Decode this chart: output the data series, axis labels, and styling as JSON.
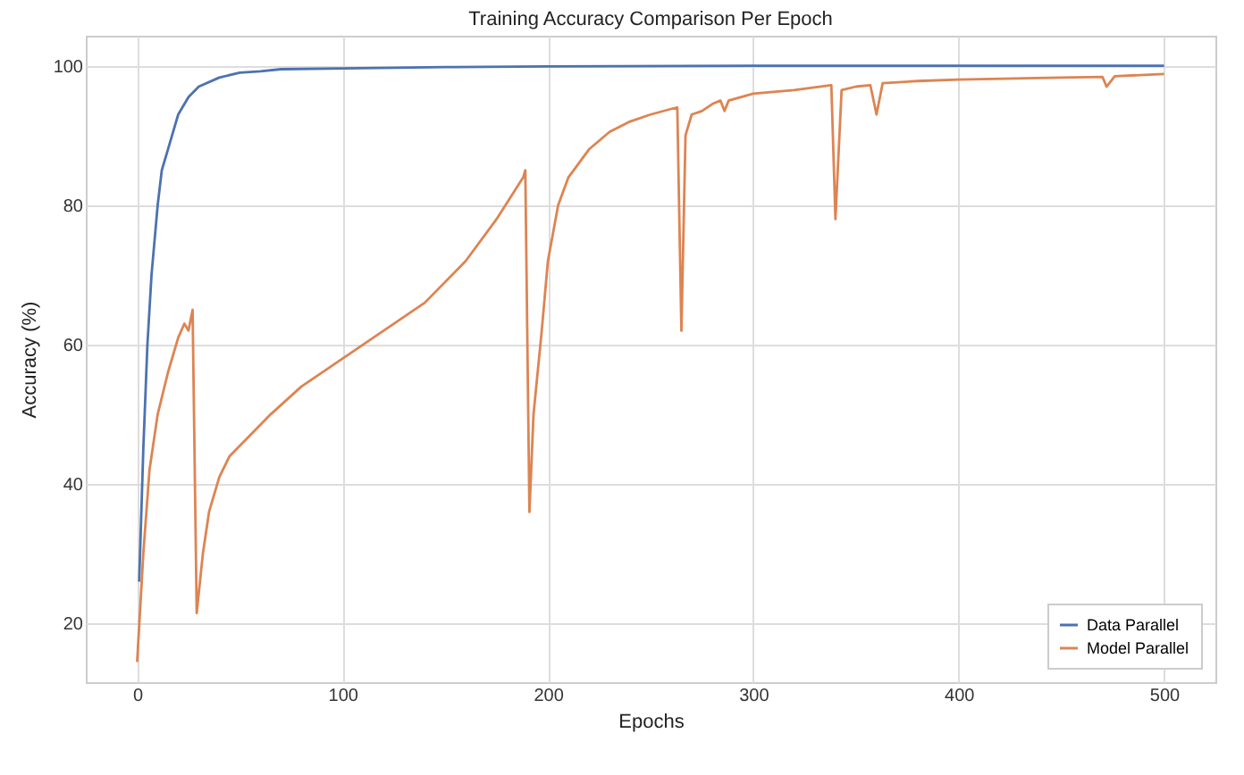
{
  "chart_data": {
    "type": "line",
    "title": "Training Accuracy Comparison Per Epoch",
    "xlabel": "Epochs",
    "ylabel": "Accuracy (%)",
    "xlim": [
      -25,
      525
    ],
    "xticks": [
      0,
      100,
      200,
      300,
      400,
      500
    ],
    "ylim": [
      11.6,
      104.3
    ],
    "yticks": [
      20,
      40,
      60,
      80,
      100
    ],
    "grid": true,
    "legend": "bottom right",
    "line_style": "solid",
    "series": [
      {
        "name": "Data Parallel",
        "color": "#4c72b0",
        "x": [
          1,
          3,
          5,
          7,
          10,
          12,
          15,
          18,
          20,
          25,
          30,
          40,
          50,
          60,
          70,
          100,
          150,
          200,
          300,
          400,
          500
        ],
        "values": [
          26,
          45,
          60,
          70,
          80,
          85,
          88,
          91,
          93,
          95.5,
          97,
          98.3,
          99,
          99.2,
          99.5,
          99.6,
          99.8,
          99.9,
          100,
          100,
          100
        ]
      },
      {
        "name": "Model Parallel",
        "color": "#dd8452",
        "x": [
          0,
          3,
          6,
          10,
          15,
          20,
          23,
          25,
          27,
          29,
          32,
          35,
          40,
          45,
          55,
          65,
          80,
          100,
          120,
          140,
          160,
          175,
          188,
          189,
          191,
          193,
          197,
          200,
          205,
          210,
          220,
          230,
          240,
          250,
          260,
          263,
          265,
          267,
          270,
          275,
          280,
          284,
          286,
          288,
          300,
          320,
          338,
          340,
          343,
          350,
          357,
          360,
          363,
          380,
          400,
          450,
          470,
          472,
          476,
          500
        ],
        "values": [
          14.5,
          30,
          42,
          50,
          56,
          61,
          63,
          62,
          65,
          21.5,
          30,
          36,
          41,
          44,
          47,
          50,
          54,
          58,
          62,
          66,
          72,
          78,
          84,
          85,
          36,
          50,
          62,
          72,
          80,
          84,
          88,
          90.5,
          92,
          93,
          93.8,
          94,
          62,
          90,
          93,
          93.5,
          94.5,
          95,
          93.5,
          95,
          96,
          96.5,
          97.2,
          78,
          96.5,
          97,
          97.2,
          93,
          97.5,
          97.8,
          98,
          98.3,
          98.4,
          97,
          98.5,
          98.8
        ]
      }
    ]
  }
}
